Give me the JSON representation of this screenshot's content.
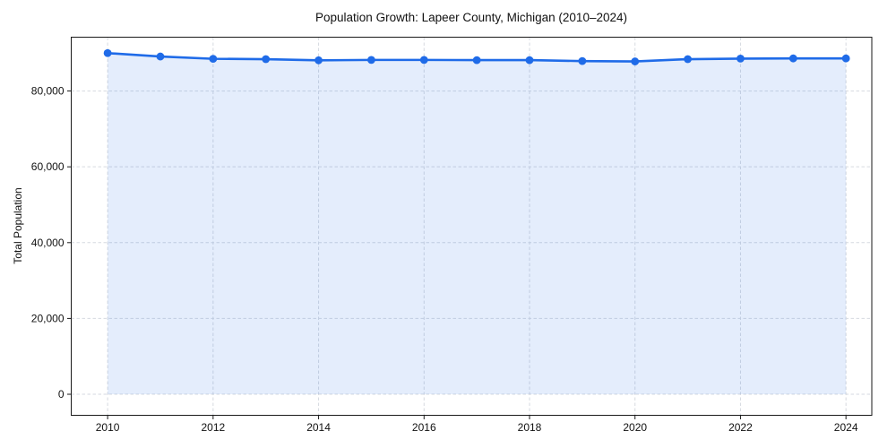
{
  "chart_data": {
    "type": "line",
    "title": "Population Growth: Lapeer County, Michigan (2010–2024)",
    "xlabel": "",
    "ylabel": "Total Population",
    "x": [
      2010,
      2011,
      2012,
      2013,
      2014,
      2015,
      2016,
      2017,
      2018,
      2019,
      2020,
      2021,
      2022,
      2023,
      2024
    ],
    "series": [
      {
        "name": "Total Population",
        "values": [
          90000,
          89100,
          88500,
          88400,
          88100,
          88200,
          88200,
          88150,
          88150,
          87900,
          87800,
          88400,
          88550,
          88600,
          88600
        ]
      }
    ],
    "xticks": [
      2010,
      2012,
      2014,
      2016,
      2018,
      2020,
      2022,
      2024
    ],
    "yticks": [
      0,
      20000,
      40000,
      60000,
      80000
    ],
    "ytick_labels": [
      "0",
      "20,000",
      "40,000",
      "60,000",
      "80,000"
    ],
    "xlim": [
      2009.31,
      2024.49
    ],
    "ylim": [
      -5550,
      94200
    ],
    "grid": true,
    "legend": "none",
    "marker": "circle",
    "line_color": "#1f6be8",
    "fill_color": "rgba(31, 107, 232, 0.12)",
    "grid_color": "#d6dae0",
    "spine_color": "#1a1a1a",
    "tick_color": "#1a1a1a",
    "background_color": "#ffffff"
  }
}
